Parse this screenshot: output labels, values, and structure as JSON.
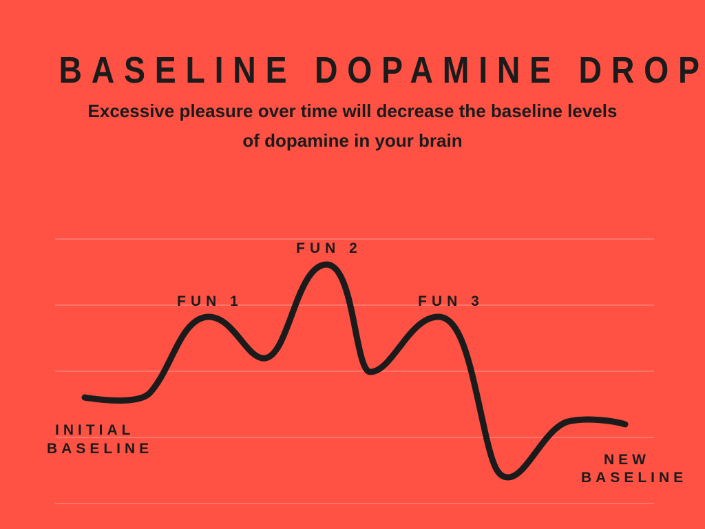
{
  "title": "BASELINE DOPAMINE DROP",
  "subtitle": "Excessive pleasure over time will decrease the baseline levels of dopamine in your brain",
  "labels": {
    "fun1": "FUN 1",
    "fun2": "FUN 2",
    "fun3": "FUN 3",
    "initial_line1": "INITIAL",
    "initial_line2": "BASELINE",
    "new_line1": "NEW",
    "new_line2": "BASELINE"
  },
  "colors": {
    "background": "#FF5244",
    "ink": "#1b1b1b",
    "grid": "#ff8a80"
  }
}
